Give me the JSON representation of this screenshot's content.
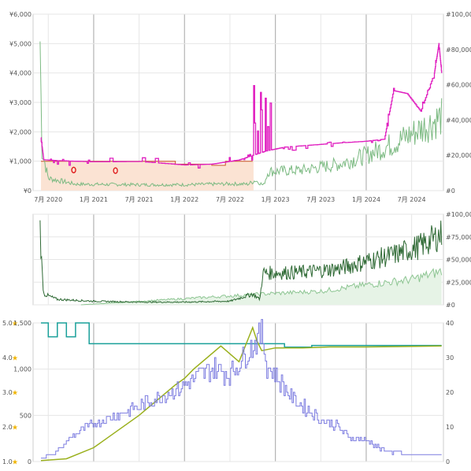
{
  "colors": {
    "price_new": "#e020c0",
    "price_amazon_fill": "#fbe3d3",
    "price_amazon_line": "#c85020",
    "used_green": "#7cba82",
    "rank_light": "#8dc592",
    "rank_dark": "#2f6a35",
    "rating_teal": "#1aa09a",
    "offer_olive": "#9ab01c",
    "review_blue": "#7c7ce0",
    "grid": "#e6e6e6",
    "year_line": "#b4b4b4",
    "star": "#f0b400",
    "axis_text": "#555555",
    "marker_red": "#e02020"
  },
  "chart_data": [
    {
      "type": "line",
      "name": "price_history",
      "x_ticks": [
        "7月 2020",
        "1月 2021",
        "7月 2021",
        "1月 2022",
        "7月 2022",
        "1月 2023",
        "7月 2023",
        "1月 2024",
        "7月 2024"
      ],
      "xlim": [
        "2020-05",
        "2024-10"
      ],
      "y_left": {
        "ticks": [
          "¥0",
          "¥1,000",
          "¥2,000",
          "¥3,000",
          "¥4,000",
          "¥5,000",
          "¥6,000"
        ],
        "ylim": [
          0,
          6000
        ]
      },
      "y_right": {
        "ticks": [
          "#0",
          "#20,000",
          "#40,000",
          "#60,000",
          "#80,000",
          "#100,000"
        ],
        "ylim": [
          0,
          100000
        ]
      },
      "series": [
        {
          "key": "new_price",
          "values": [
            [
              2020.42,
              1800
            ],
            [
              2020.45,
              1050
            ],
            [
              2020.6,
              1020
            ],
            [
              2020.8,
              1000
            ],
            [
              2021.0,
              980
            ],
            [
              2021.5,
              990
            ],
            [
              2022.0,
              870
            ],
            [
              2022.3,
              900
            ],
            [
              2022.45,
              970
            ],
            [
              2022.6,
              1040
            ],
            [
              2022.75,
              1200
            ],
            [
              2022.9,
              1350
            ],
            [
              2023.1,
              1480
            ],
            [
              2023.4,
              1550
            ],
            [
              2023.7,
              1620
            ],
            [
              2024.0,
              1680
            ],
            [
              2024.2,
              1750
            ],
            [
              2024.3,
              3400
            ],
            [
              2024.45,
              3300
            ],
            [
              2024.6,
              2700
            ],
            [
              2024.75,
              4000
            ],
            [
              2024.8,
              5000
            ],
            [
              2024.83,
              4000
            ]
          ]
        },
        {
          "key": "amazon_price",
          "values": [
            [
              2020.42,
              1000
            ],
            [
              2020.6,
              1000
            ],
            [
              2020.8,
              1000
            ],
            [
              2021.2,
              1000
            ],
            [
              2021.6,
              1000
            ],
            [
              2021.9,
              900
            ],
            [
              2022.3,
              860
            ],
            [
              2022.45,
              1000
            ],
            [
              2022.75,
              1000
            ],
            [
              2022.76,
              0
            ]
          ]
        },
        {
          "key": "used_price",
          "values": [
            [
              2020.41,
              5100
            ],
            [
              2020.43,
              1400
            ],
            [
              2020.5,
              420
            ],
            [
              2020.8,
              220
            ],
            [
              2021.5,
              200
            ],
            [
              2022.0,
              200
            ],
            [
              2022.5,
              230
            ],
            [
              2022.7,
              220
            ],
            [
              2022.78,
              350
            ],
            [
              2022.87,
              180
            ],
            [
              2022.92,
              650
            ],
            [
              2023.3,
              700
            ],
            [
              2023.7,
              900
            ],
            [
              2024.0,
              1200
            ],
            [
              2024.3,
              1600
            ],
            [
              2024.6,
              2100
            ],
            [
              2024.83,
              2500
            ]
          ]
        }
      ],
      "markers": [
        [
          2020.78,
          700
        ],
        [
          2021.24,
          680
        ]
      ]
    },
    {
      "type": "line",
      "name": "sales_rank",
      "y_right": {
        "ticks": [
          "#0",
          "#25,000",
          "#50,000",
          "#75,000",
          "#100,000"
        ],
        "ylim": [
          0,
          100000
        ]
      },
      "series": [
        {
          "key": "rank_dark",
          "values": [
            [
              2020.41,
              85000
            ],
            [
              2020.43,
              40000
            ],
            [
              2020.45,
              12000
            ],
            [
              2020.6,
              6000
            ],
            [
              2021.0,
              4000
            ],
            [
              2021.5,
              3000
            ],
            [
              2022.0,
              3000
            ],
            [
              2022.5,
              4000
            ],
            [
              2022.75,
              12000
            ],
            [
              2022.83,
              6000
            ],
            [
              2022.86,
              35000
            ],
            [
              2023.3,
              36000
            ],
            [
              2023.7,
              40000
            ],
            [
              2024.0,
              48000
            ],
            [
              2024.3,
              55000
            ],
            [
              2024.6,
              65000
            ],
            [
              2024.83,
              78000
            ]
          ]
        },
        {
          "key": "rank_light",
          "values": [
            [
              2020.86,
              0
            ],
            [
              2022.86,
              12000
            ],
            [
              2023.5,
              15000
            ],
            [
              2024.0,
              22000
            ],
            [
              2024.5,
              28000
            ],
            [
              2024.83,
              37000
            ]
          ]
        }
      ]
    },
    {
      "type": "line",
      "name": "ratings_reviews",
      "y_left_rating": {
        "ticks": [
          "1.0",
          "2.0",
          "3.0",
          "4.0",
          "5.0"
        ],
        "ylim": [
          1,
          5
        ]
      },
      "y_left_count": {
        "ticks": [
          "0",
          "500",
          "1,000",
          "1,500"
        ],
        "ylim": [
          0,
          1500
        ]
      },
      "y_right": {
        "ticks": [
          "0",
          "10",
          "20",
          "30",
          "40"
        ],
        "ylim": [
          0,
          40
        ]
      },
      "series": [
        {
          "key": "rating",
          "values": [
            [
              2020.42,
              5.0
            ],
            [
              2020.5,
              4.6
            ],
            [
              2020.6,
              5.0
            ],
            [
              2020.7,
              4.6
            ],
            [
              2020.8,
              5.0
            ],
            [
              2020.95,
              4.4
            ],
            [
              2021.0,
              4.4
            ],
            [
              2022.5,
              4.4
            ],
            [
              2023.0,
              4.4
            ],
            [
              2023.1,
              4.3
            ],
            [
              2023.4,
              4.35
            ],
            [
              2024.0,
              4.35
            ],
            [
              2024.83,
              4.35
            ]
          ]
        },
        {
          "key": "review_count",
          "values": [
            [
              2020.42,
              10
            ],
            [
              2020.7,
              30
            ],
            [
              2021.0,
              150
            ],
            [
              2021.5,
              500
            ],
            [
              2021.9,
              830
            ],
            [
              2022.0,
              900
            ],
            [
              2022.1,
              1000
            ],
            [
              2022.4,
              1250
            ],
            [
              2022.6,
              1080
            ],
            [
              2022.75,
              1450
            ],
            [
              2022.8,
              1300
            ],
            [
              2022.85,
              1200
            ],
            [
              2023.0,
              1230
            ],
            [
              2023.3,
              1230
            ],
            [
              2023.6,
              1240
            ],
            [
              2024.0,
              1240
            ],
            [
              2024.83,
              1250
            ]
          ]
        },
        {
          "key": "offer_count",
          "values": [
            [
              2020.42,
              1
            ],
            [
              2020.6,
              3
            ],
            [
              2020.8,
              8
            ],
            [
              2021.0,
              11
            ],
            [
              2021.5,
              16
            ],
            [
              2022.0,
              22
            ],
            [
              2022.3,
              27
            ],
            [
              2022.5,
              25
            ],
            [
              2022.7,
              32
            ],
            [
              2022.85,
              37
            ],
            [
              2022.9,
              28
            ],
            [
              2023.2,
              18
            ],
            [
              2023.5,
              12
            ],
            [
              2023.7,
              10
            ],
            [
              2023.8,
              7
            ],
            [
              2024.0,
              6
            ],
            [
              2024.2,
              3
            ],
            [
              2024.5,
              2
            ],
            [
              2024.83,
              2
            ]
          ]
        }
      ]
    }
  ]
}
